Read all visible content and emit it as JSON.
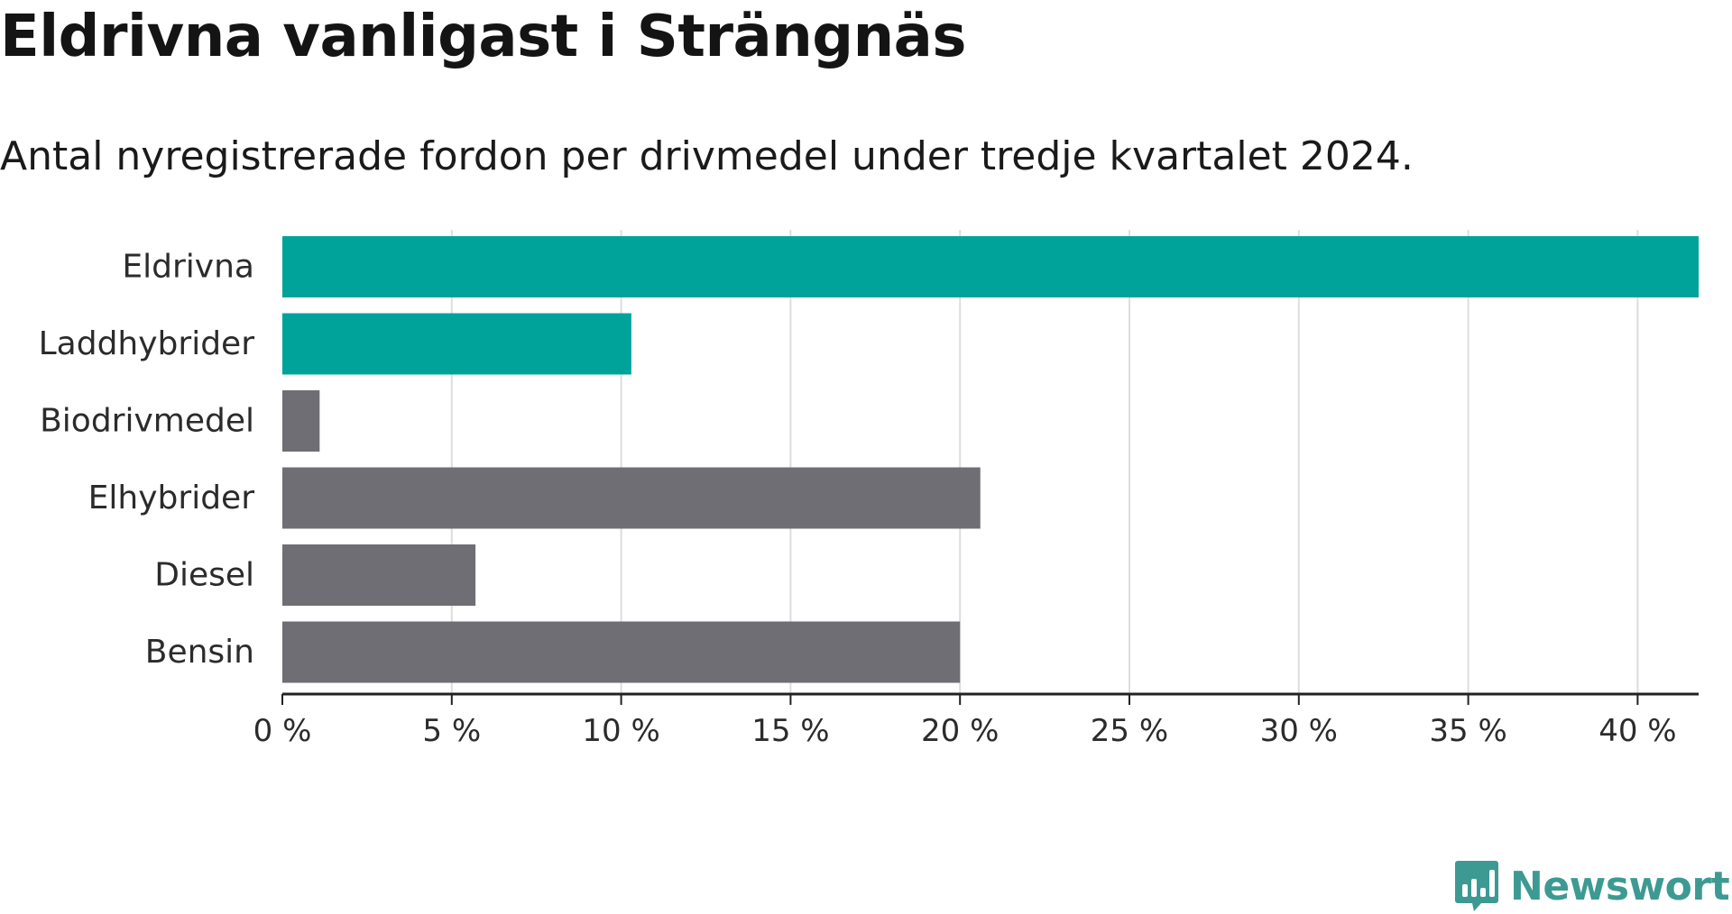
{
  "chart_data": {
    "type": "bar",
    "orientation": "horizontal",
    "title": "Eldrivna vanligast i Strängnäs",
    "subtitle": "Antal nyregistrerade fordon per drivmedel under tredje kvartalet 2024.",
    "categories": [
      "Eldrivna",
      "Laddhybrider",
      "Biodrivmedel",
      "Elhybrider",
      "Diesel",
      "Bensin"
    ],
    "values": [
      41.8,
      10.3,
      1.1,
      20.6,
      5.7,
      20.0
    ],
    "colors": [
      "#00a39a",
      "#00a39a",
      "#6e6e74",
      "#6e6e74",
      "#6e6e74",
      "#6e6e74"
    ],
    "xlim": [
      0,
      41.8
    ],
    "x_ticks": [
      0,
      5,
      10,
      15,
      20,
      25,
      30,
      35,
      40
    ],
    "x_tick_labels": [
      "0 %",
      "5 %",
      "10 %",
      "15 %",
      "20 %",
      "25 %",
      "30 %",
      "35 %",
      "40 %"
    ],
    "grid": "vertical",
    "xlabel": "",
    "ylabel": ""
  },
  "colors": {
    "highlight": "#00a39a",
    "neutral": "#6e6e74",
    "grid": "#dddddd",
    "axis": "#222222",
    "brand": "#3d9a93"
  },
  "brand": {
    "icon": "bar-chart-speech-bubble-icon",
    "name": "Newsworthy"
  }
}
